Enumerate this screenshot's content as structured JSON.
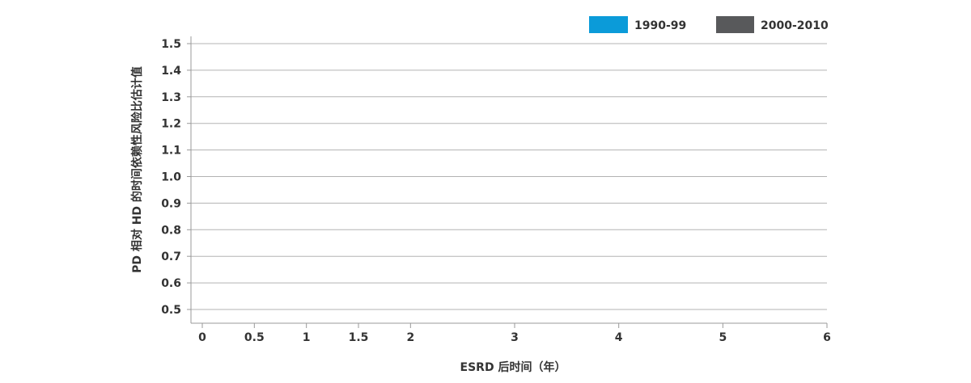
{
  "chart_data": {
    "type": "line",
    "title": "",
    "xlabel": "ESRD 后时间（年）",
    "ylabel": "PD 相对 HD 的时间依赖性风险比估计值",
    "xlim": [
      0,
      6
    ],
    "ylim": [
      0.5,
      1.5
    ],
    "x_ticks": [
      0,
      0.5,
      1,
      1.5,
      2,
      3,
      4,
      5,
      6
    ],
    "x_tick_labels": [
      "0",
      "0.5",
      "1",
      "1.5",
      "2",
      "3",
      "4",
      "5",
      "6"
    ],
    "y_ticks": [
      0.5,
      0.6,
      0.7,
      0.8,
      0.9,
      1.0,
      1.1,
      1.2,
      1.3,
      1.4,
      1.5
    ],
    "y_tick_labels": [
      "0.5",
      "0.6",
      "0.7",
      "0.8",
      "0.9",
      "1.0",
      "1.1",
      "1.2",
      "1.3",
      "1.4",
      "1.5"
    ],
    "grid": "horizontal",
    "legend_position": "top-right",
    "series": [
      {
        "name": "1990-99",
        "color": "#0b9bd9",
        "x": [],
        "y": []
      },
      {
        "name": "2000-2010",
        "color": "#58595b",
        "x": [],
        "y": []
      }
    ]
  }
}
